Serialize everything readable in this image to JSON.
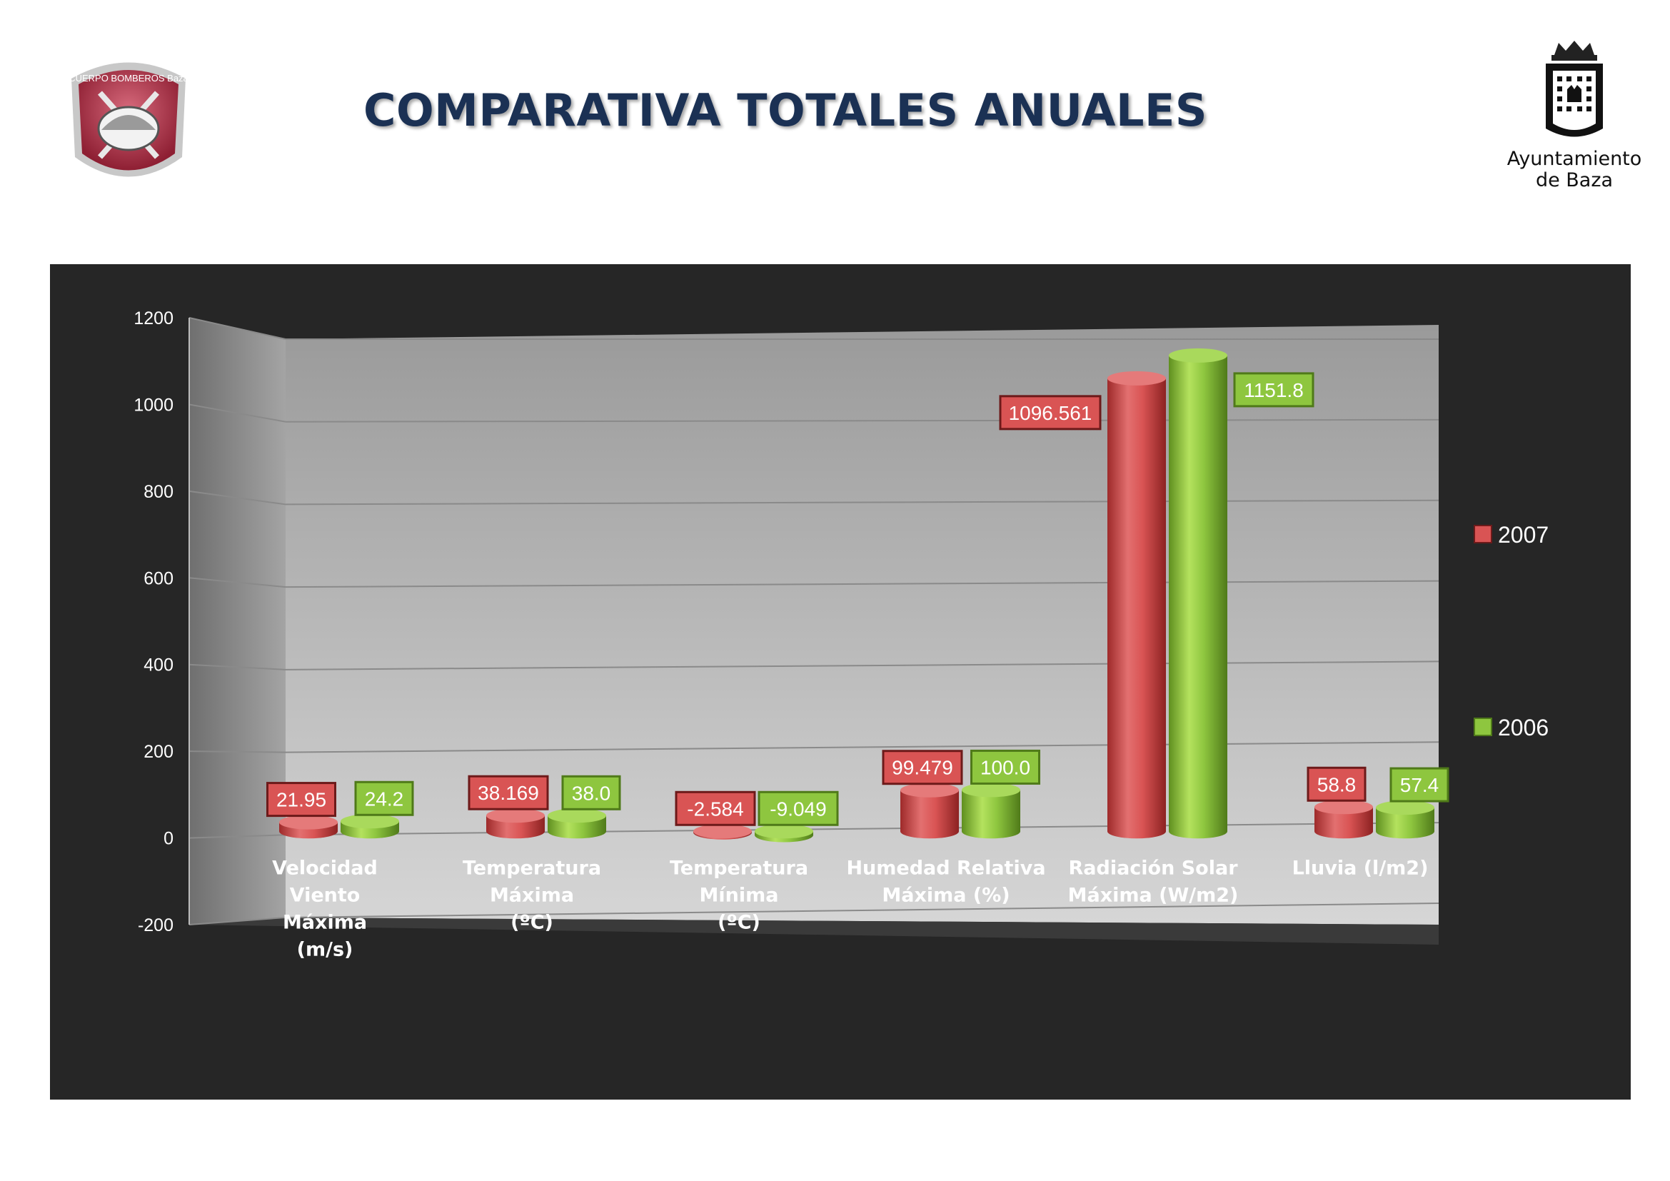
{
  "header": {
    "title": "COMPARATIVA TOTALES ANUALES",
    "left_logo_text": "CUERPO BOMBEROS Baza",
    "right_logo_caption_line1": "Ayuntamiento",
    "right_logo_caption_line2": "de Baza"
  },
  "colors": {
    "series_2007": "#d95454",
    "series_2006": "#8ec63f",
    "title": "#1b3154",
    "chart_background": "#262626"
  },
  "chart_data": {
    "type": "bar",
    "style": "3d-cylinder",
    "title": "",
    "xlabel": "",
    "ylabel": "",
    "ylim": [
      -200,
      1200
    ],
    "yticks": [
      -200,
      0,
      200,
      400,
      600,
      800,
      1000,
      1200
    ],
    "grid": true,
    "legend_position": "right",
    "categories": [
      [
        "Velocidad",
        "Viento",
        "Máxima",
        "(m/s)"
      ],
      [
        "Temperatura",
        "Máxima",
        "(ºC)"
      ],
      [
        "Temperatura",
        "Mínima",
        "(ºC)"
      ],
      [
        "Humedad Relativa",
        "Máxima (%)"
      ],
      [
        "Radiación Solar",
        "Máxima (W/m2)"
      ],
      [
        "Lluvia (l/m2)"
      ]
    ],
    "series": [
      {
        "name": "2007",
        "values": [
          21.95,
          38.169,
          -2.584,
          99.479,
          1096.561,
          58.8
        ],
        "labels": [
          "21.95",
          "38.169",
          "-2.584",
          "99.479",
          "1096.561",
          "58.8"
        ]
      },
      {
        "name": "2006",
        "values": [
          24.2,
          38.0,
          -9.049,
          100.0,
          1151.8,
          57.4
        ],
        "labels": [
          "24.2",
          "38.0",
          "-9.049",
          "100.0",
          "1151.8",
          "57.4"
        ]
      }
    ]
  }
}
